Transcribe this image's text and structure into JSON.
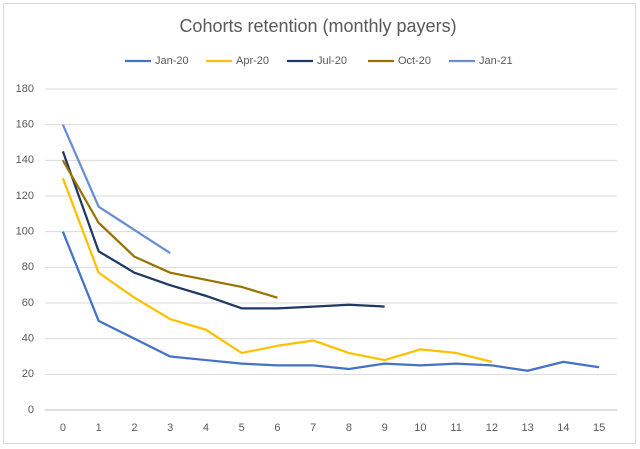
{
  "chart_data": {
    "type": "line",
    "title": "Cohorts retention (monthly payers)",
    "categories": [
      0,
      1,
      2,
      3,
      4,
      5,
      6,
      7,
      8,
      9,
      10,
      11,
      12,
      13,
      14,
      15
    ],
    "series": [
      {
        "name": "Jan-20",
        "color": "#4472c4",
        "values": [
          100,
          50,
          40,
          30,
          28,
          26,
          25,
          25,
          23,
          26,
          25,
          26,
          25,
          22,
          27,
          24
        ]
      },
      {
        "name": "Apr-20",
        "color": "#ffc000",
        "values": [
          130,
          77,
          63,
          51,
          45,
          32,
          36,
          39,
          32,
          28,
          34,
          32,
          27,
          null,
          null,
          null
        ]
      },
      {
        "name": "Jul-20",
        "color": "#1f3864",
        "values": [
          145,
          89,
          77,
          70,
          64,
          57,
          57,
          58,
          59,
          58,
          null,
          null,
          null,
          null,
          null,
          null
        ]
      },
      {
        "name": "Oct-20",
        "color": "#997300",
        "values": [
          140,
          105,
          86,
          77,
          73,
          69,
          63,
          null,
          null,
          null,
          null,
          null,
          null,
          null,
          null,
          null
        ]
      },
      {
        "name": "Jan-21",
        "color": "#698ed0",
        "values": [
          160,
          114,
          101,
          88,
          null,
          null,
          null,
          null,
          null,
          null,
          null,
          null,
          null,
          null,
          null,
          null
        ]
      }
    ],
    "ylim": [
      0,
      180
    ],
    "yticks": [
      0,
      20,
      40,
      60,
      80,
      100,
      120,
      140,
      160,
      180
    ],
    "grid": true,
    "legend": "top"
  }
}
